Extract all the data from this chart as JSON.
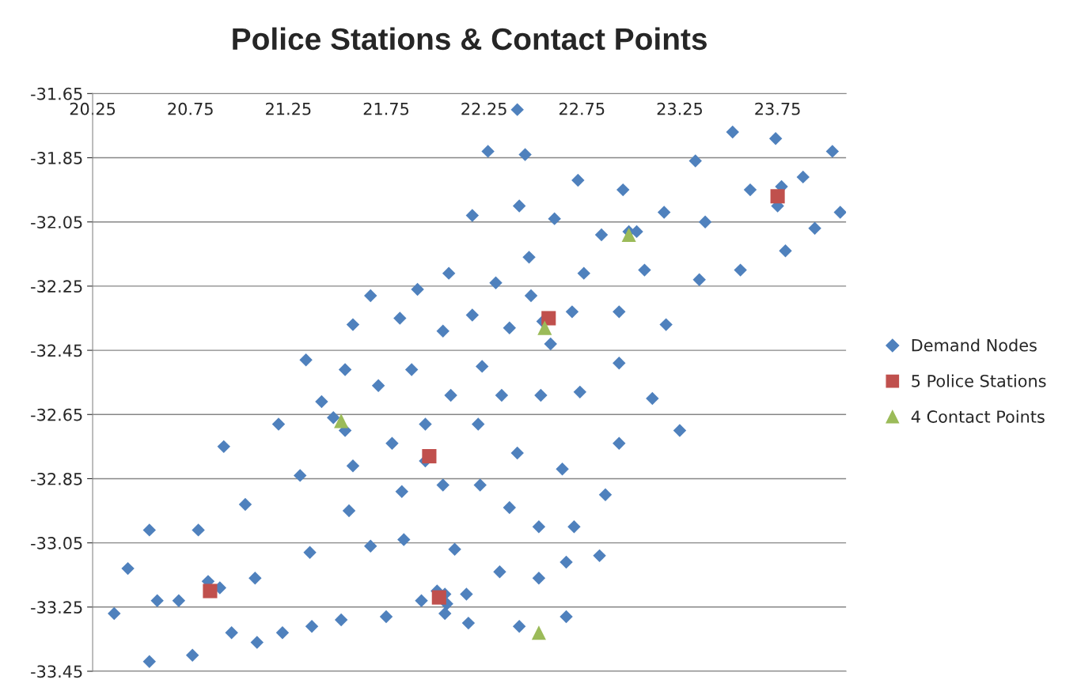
{
  "chart_data": {
    "type": "scatter",
    "title": "Police Stations & Contact Points",
    "xlim": [
      20.25,
      24.1
    ],
    "xticks": [
      20.25,
      20.75,
      21.25,
      21.75,
      22.25,
      22.75,
      23.25,
      23.75
    ],
    "ylim": [
      -33.45,
      -31.65
    ],
    "yticks": [
      -33.45,
      -33.25,
      -33.05,
      -32.85,
      -32.65,
      -32.45,
      -32.25,
      -32.05,
      -31.85,
      -31.65
    ],
    "grid": "y",
    "legend": "right",
    "series": [
      {
        "name": "Demand Nodes",
        "color": "#4f81bd",
        "marker": "diamond",
        "x": [
          22.42,
          22.27,
          22.46,
          23.52,
          23.74,
          24.03,
          23.33,
          22.73,
          22.96,
          23.61,
          23.88,
          23.77,
          23.75,
          22.19,
          22.43,
          22.61,
          23.17,
          23.38,
          24.07,
          22.85,
          22.99,
          23.03,
          23.94,
          22.48,
          23.79,
          22.07,
          22.76,
          23.07,
          23.35,
          23.56,
          22.31,
          21.91,
          21.67,
          22.49,
          21.82,
          22.19,
          21.58,
          22.04,
          22.38,
          22.7,
          22.94,
          23.18,
          22.55,
          22.59,
          21.34,
          21.54,
          21.88,
          22.24,
          22.94,
          21.71,
          22.08,
          22.34,
          22.54,
          22.74,
          21.42,
          23.11,
          21.48,
          21.54,
          21.2,
          21.95,
          22.22,
          23.25,
          20.92,
          21.78,
          22.42,
          22.94,
          21.95,
          21.58,
          22.65,
          21.31,
          22.04,
          22.23,
          21.83,
          22.87,
          21.03,
          22.38,
          21.56,
          20.54,
          20.79,
          22.53,
          22.71,
          21.84,
          21.67,
          21.36,
          22.1,
          22.84,
          22.67,
          20.43,
          22.33,
          21.08,
          22.53,
          20.84,
          20.9,
          22.16,
          20.58,
          20.69,
          22.01,
          22.05,
          21.93,
          22.06,
          22.05,
          20.36,
          21.75,
          21.52,
          22.17,
          22.67,
          21.37,
          21.22,
          20.96,
          22.43,
          21.09,
          20.76,
          20.54
        ],
        "values": [
          -31.7,
          -31.83,
          -31.84,
          -31.77,
          -31.79,
          -31.83,
          -31.86,
          -31.92,
          -31.95,
          -31.95,
          -31.91,
          -31.94,
          -32.0,
          -32.03,
          -32.0,
          -32.04,
          -32.02,
          -32.05,
          -32.02,
          -32.09,
          -32.08,
          -32.08,
          -32.07,
          -32.16,
          -32.14,
          -32.21,
          -32.21,
          -32.2,
          -32.23,
          -32.2,
          -32.24,
          -32.26,
          -32.28,
          -32.28,
          -32.35,
          -32.34,
          -32.37,
          -32.39,
          -32.38,
          -32.33,
          -32.33,
          -32.37,
          -32.36,
          -32.43,
          -32.48,
          -32.51,
          -32.51,
          -32.5,
          -32.49,
          -32.56,
          -32.59,
          -32.59,
          -32.59,
          -32.58,
          -32.61,
          -32.6,
          -32.66,
          -32.7,
          -32.68,
          -32.68,
          -32.68,
          -32.7,
          -32.75,
          -32.74,
          -32.77,
          -32.74,
          -32.795,
          -32.81,
          -32.82,
          -32.84,
          -32.87,
          -32.87,
          -32.89,
          -32.9,
          -32.93,
          -32.94,
          -32.95,
          -33.01,
          -33.01,
          -33.0,
          -33.0,
          -33.04,
          -33.06,
          -33.08,
          -33.07,
          -33.09,
          -33.11,
          -33.13,
          -33.14,
          -33.16,
          -33.16,
          -33.17,
          -33.19,
          -33.21,
          -33.23,
          -33.23,
          -33.2,
          -33.21,
          -33.23,
          -33.24,
          -33.27,
          -33.27,
          -33.28,
          -33.29,
          -33.3,
          -33.28,
          -33.31,
          -33.33,
          -33.33,
          -33.31,
          -33.36,
          -33.4,
          -33.42
        ]
      },
      {
        "name": "5 Police Stations",
        "color": "#c0504d",
        "marker": "square",
        "x": [
          23.75,
          22.58,
          21.97,
          22.02,
          20.85
        ],
        "values": [
          -31.97,
          -32.35,
          -32.78,
          -33.22,
          -33.2
        ]
      },
      {
        "name": "4 Contact Points",
        "color": "#9bbb59",
        "marker": "triangle",
        "x": [
          22.99,
          22.56,
          21.52,
          22.53
        ],
        "values": [
          -32.09,
          -32.38,
          -32.67,
          -33.33
        ]
      }
    ]
  }
}
